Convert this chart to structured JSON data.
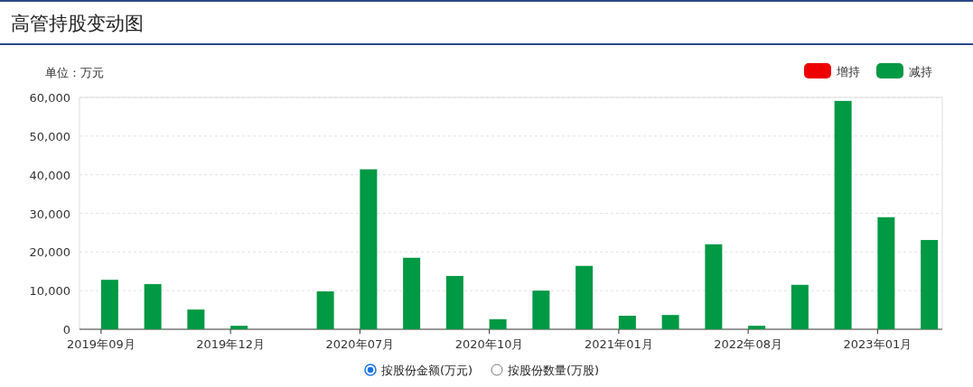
{
  "chart_data": {
    "type": "bar",
    "title": "高管持股变动图",
    "annotations": [
      "单位：万元",
      "按股份金额(万元)",
      "按股份数量(万股)"
    ],
    "categories": [
      "2019年09月",
      null,
      null,
      "2019年12月",
      null,
      null,
      "2020年07月",
      null,
      null,
      "2020年10月",
      null,
      null,
      "2021年01月",
      null,
      null,
      "2022年08月",
      null,
      null,
      "2023年01月",
      null
    ],
    "series": [
      {
        "name": "增持",
        "color": "#ee0000",
        "values": [
          null,
          null,
          null,
          null,
          null,
          null,
          null,
          null,
          null,
          null,
          null,
          null,
          null,
          null,
          null,
          null,
          null,
          null,
          null,
          null
        ]
      },
      {
        "name": "减持",
        "color": "#009944",
        "values": [
          12800,
          11700,
          5100,
          900,
          null,
          9800,
          41400,
          18500,
          13800,
          2600,
          10000,
          16400,
          3500,
          3700,
          22000,
          900,
          11500,
          59100,
          29000,
          23100
        ]
      }
    ],
    "ylim": [
      0,
      60000
    ],
    "yticks": [
      0,
      {
        "value": 10000,
        "label": "10,000"
      },
      {
        "value": 20000,
        "label": "20,000"
      },
      {
        "value": 30000,
        "label": "30,000"
      },
      {
        "value": 40000,
        "label": "40,000"
      },
      {
        "value": 50000,
        "label": "50,000"
      },
      {
        "value": 60000,
        "label": "60,000"
      }
    ],
    "grid": "y",
    "legend": "top right"
  }
}
